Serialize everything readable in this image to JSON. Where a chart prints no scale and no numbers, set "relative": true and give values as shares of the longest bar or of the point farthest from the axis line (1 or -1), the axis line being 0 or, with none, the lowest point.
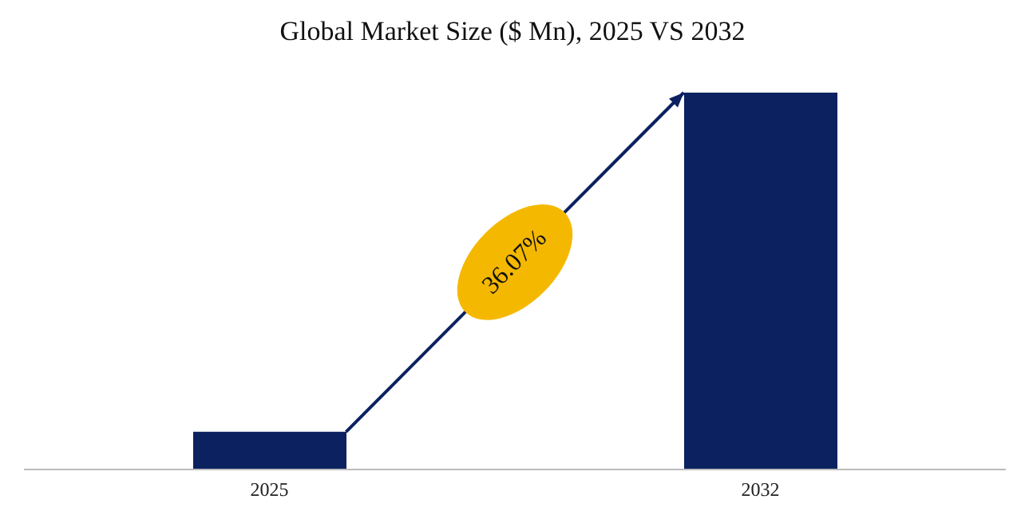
{
  "chart_data": {
    "type": "bar",
    "title": "Global Market Size ($ Mn), 2025 VS 2032",
    "categories": [
      "2025",
      "2032"
    ],
    "values": [
      0.1,
      1
    ],
    "color": "#0b2160",
    "relative": true,
    "annotations": [
      "36.07%"
    ]
  }
}
